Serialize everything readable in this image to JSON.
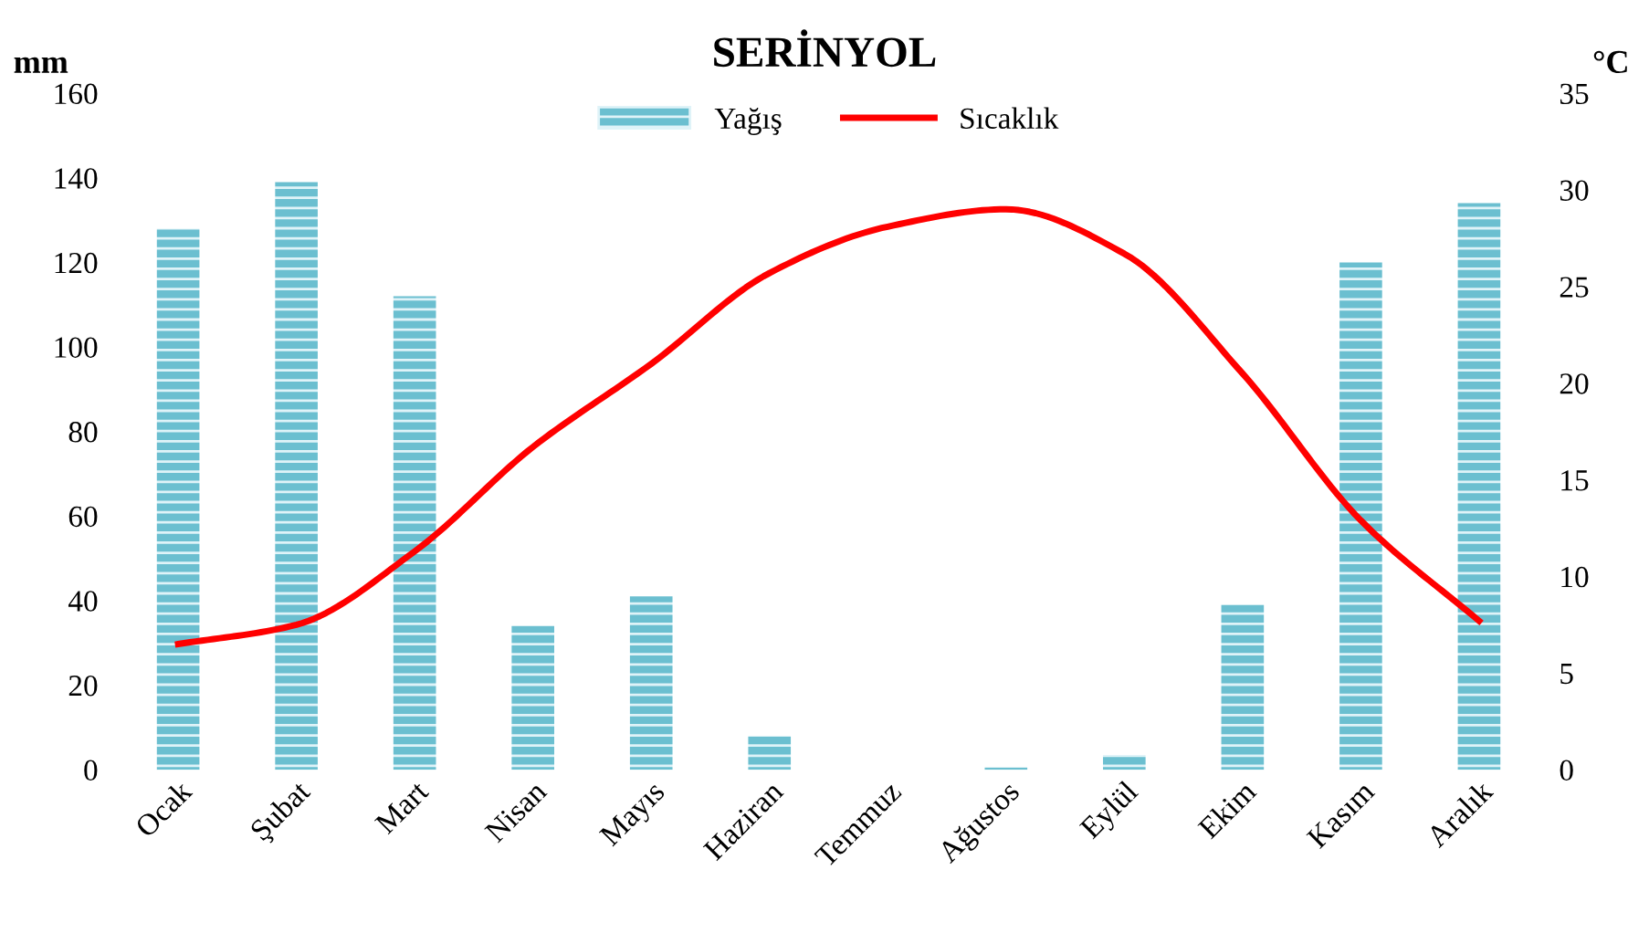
{
  "chart_data": {
    "type": "bar",
    "title": "SERİNYOL",
    "ylabel": "mm",
    "y2label": "°C",
    "categories": [
      "Ocak",
      "Şubat",
      "Mart",
      "Nisan",
      "Mayıs",
      "Haziran",
      "Temmuz",
      "Ağustos",
      "Eylül",
      "Ekim",
      "Kasım",
      "Aralık"
    ],
    "series": [
      {
        "name": "Yağış",
        "color": "#6bbfd0",
        "values": [
          128,
          139,
          112,
          34,
          41,
          8,
          0,
          0.5,
          3.5,
          39,
          120,
          134
        ]
      },
      {
        "name": "Sıcaklık",
        "type": "line",
        "axis": "y2",
        "color": "#ff0000",
        "values": [
          6.5,
          7.5,
          11.3,
          16.7,
          21,
          25.7,
          28.1,
          29.0,
          26.7,
          20.5,
          12.9,
          7.7
        ]
      }
    ],
    "ylim": [
      0,
      160
    ],
    "yticks": [
      0,
      20,
      40,
      60,
      80,
      100,
      120,
      140,
      160
    ],
    "y2lim": [
      0,
      35
    ],
    "y2ticks": [
      0,
      5,
      10,
      15,
      20,
      25,
      30,
      35
    ],
    "grid": false,
    "legend": "top",
    "marker": "none",
    "line_style": "solid"
  }
}
